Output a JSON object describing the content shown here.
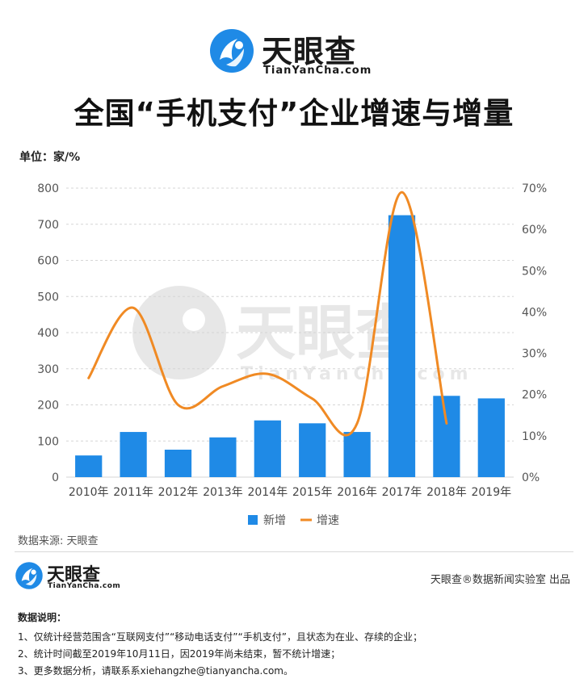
{
  "brand": {
    "name": "天眼查",
    "domain": "TianYanCha.com"
  },
  "title": "全国“手机支付”企业增速与增量",
  "unit": "单位：家/%",
  "chart_data": {
    "type": "bar+line",
    "categories": [
      "2010年",
      "2011年",
      "2012年",
      "2013年",
      "2014年",
      "2015年",
      "2016年",
      "2017年",
      "2018年",
      "2019年"
    ],
    "series": [
      {
        "name": "新增",
        "type": "bar",
        "axis": "left",
        "color": "#1f8ae6",
        "values": [
          60,
          125,
          76,
          110,
          157,
          149,
          125,
          725,
          225,
          218
        ]
      },
      {
        "name": "增速",
        "type": "line",
        "axis": "right",
        "color": "#f08a24",
        "values": [
          24,
          41,
          17.5,
          22,
          25,
          19,
          13,
          69,
          13,
          null
        ]
      }
    ],
    "y_left": {
      "ylim": [
        0,
        800
      ],
      "ticks": [
        "0",
        "100",
        "200",
        "300",
        "400",
        "500",
        "600",
        "700",
        "800"
      ]
    },
    "y_right": {
      "ylim": [
        0,
        70
      ],
      "ticks": [
        "0%",
        "10%",
        "20%",
        "30%",
        "40%",
        "50%",
        "60%",
        "70%"
      ]
    },
    "grid": true,
    "legend_position": "bottom-center",
    "watermark": {
      "name": "天眼查",
      "domain": "TianYanCha.com"
    }
  },
  "source": "数据来源: 天眼查",
  "footer": {
    "brand_name": "天眼查",
    "brand_domain": "TianYanCha.com",
    "credit": "天眼查®数据新闻实验室 出品"
  },
  "notes": {
    "title": "数据说明：",
    "lines": [
      "1、仅统计经营范围含“互联网支付”“移动电话支付”“手机支付”，且状态为在业、存续的企业；",
      "2、统计时间截至2019年10月11日，因2019年尚未结束，暂不统计增速；",
      "3、更多数据分析，请联系系xiehangzhe@tianyancha.com。"
    ]
  },
  "colors": {
    "brand_blue": "#1f8ae6",
    "line_orange": "#f08a24",
    "grid": "#d6d6d6"
  }
}
